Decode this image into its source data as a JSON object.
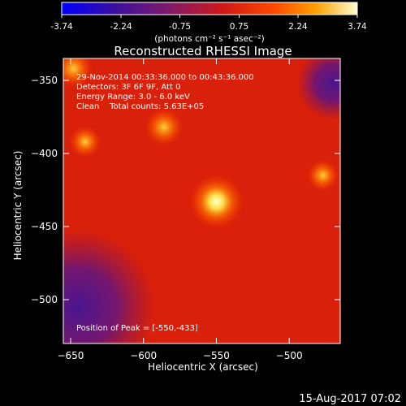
{
  "chart_data": {
    "type": "heatmap",
    "title": "Reconstructed RHESSI Image",
    "xlabel": "Heliocentric X (arcsec)",
    "ylabel": "Heliocentric Y (arcsec)",
    "xlim": [
      -655,
      -465
    ],
    "ylim": [
      -530,
      -335
    ],
    "xticks": [
      -650,
      -600,
      -550,
      -500
    ],
    "yticks": [
      -350,
      -400,
      -450,
      -500
    ],
    "annotations": [
      "29-Nov-2014 00:33:36.000 to 00:43:36.000",
      "Detectors: 3F 6F 9F, Att 0",
      "Energy Range: 3.0 - 6.0 keV",
      "Clean    Total counts: 5.63E+05"
    ],
    "peak_label": "Position of Peak = [-550,-433]",
    "peak": {
      "x": -550,
      "y": -433
    },
    "colorbar": {
      "ticks": [
        "-3.74",
        "-2.24",
        "-0.75",
        "0.75",
        "2.24",
        "3.74"
      ],
      "range": [
        -3.74,
        3.74
      ],
      "unit_label": "(photons cm⁻² s⁻¹ asec⁻²)"
    },
    "sources": [
      {
        "x": -550,
        "y": -433,
        "value": 3.7
      },
      {
        "x": -586,
        "y": -382,
        "value": 2.6
      },
      {
        "x": -640,
        "y": -392,
        "value": 2.0
      },
      {
        "x": -477,
        "y": -415,
        "value": 1.7
      },
      {
        "x": -648,
        "y": -342,
        "value": 2.4
      }
    ],
    "dim_regions": [
      {
        "x": -645,
        "y": -505,
        "value": -1.5
      },
      {
        "x": -470,
        "y": -352,
        "value": -0.5
      }
    ]
  },
  "footer": {
    "timestamp": "15-Aug-2017 07:02"
  }
}
